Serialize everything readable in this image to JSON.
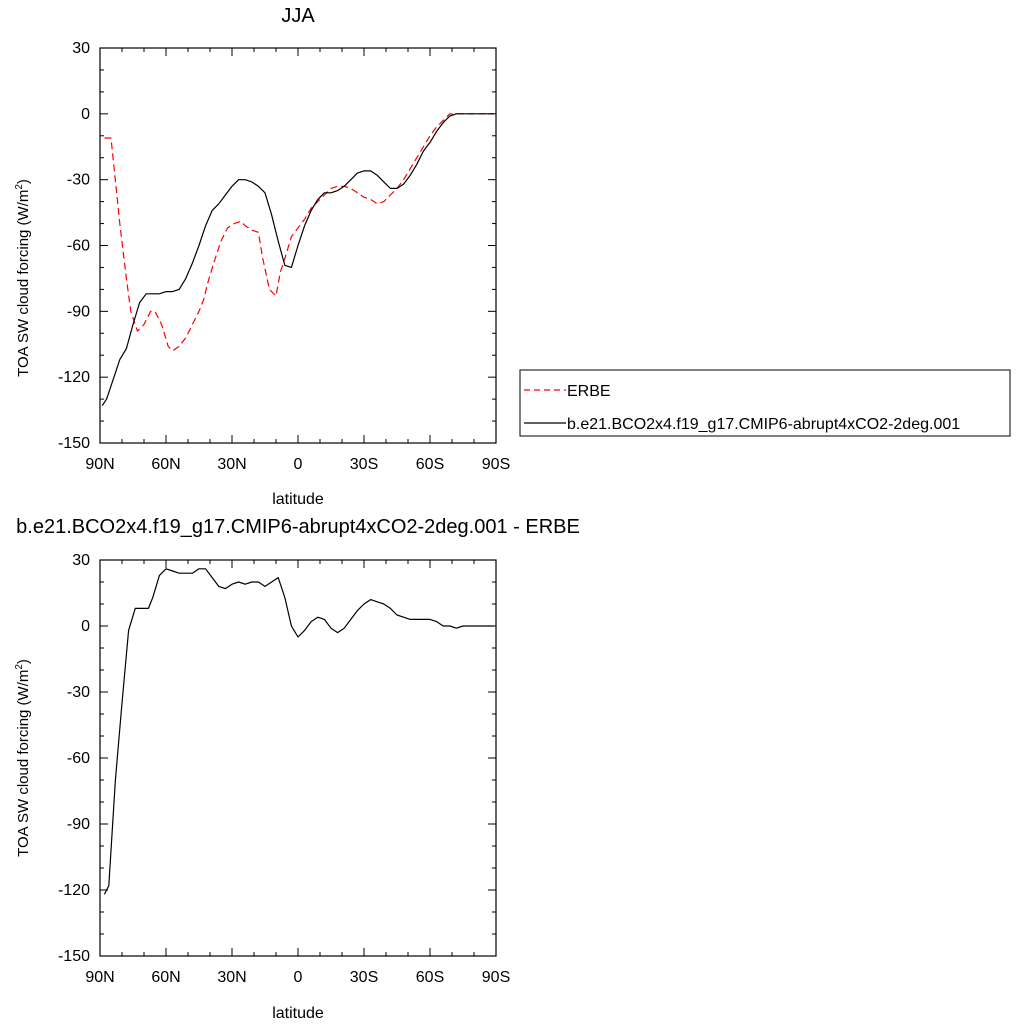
{
  "chart_data": [
    {
      "type": "line",
      "title": "JJA",
      "xlabel": "latitude",
      "ylabel": "TOA SW cloud forcing (W/m",
      "ylabel_sup": "2",
      "ylabel_tail": ")",
      "xlim": [
        90,
        -90
      ],
      "ylim": [
        -150,
        30
      ],
      "xticks": [
        90,
        60,
        30,
        0,
        -30,
        -60,
        -90
      ],
      "xtick_labels": [
        "90N",
        "60N",
        "30N",
        "0",
        "30S",
        "60S",
        "90S"
      ],
      "yticks": [
        30,
        0,
        -30,
        -60,
        -90,
        -120,
        -150
      ],
      "ytick_labels": [
        "30",
        "0",
        "-30",
        "-60",
        "-90",
        "-120",
        "-150"
      ],
      "legend_position": "right",
      "series": [
        {
          "name": "ERBE",
          "color": "#ff0000",
          "dash": true,
          "x": [
            88,
            85,
            81,
            78,
            76,
            73,
            70,
            67,
            65,
            62,
            59,
            57,
            54,
            51,
            48,
            45,
            43,
            41,
            38,
            35,
            32,
            29,
            26,
            24,
            21,
            18,
            16,
            13,
            10,
            8,
            6,
            3,
            0,
            -3,
            -6,
            -9,
            -12,
            -15,
            -18,
            -21,
            -24,
            -27,
            -30,
            -33,
            -36,
            -39,
            -42,
            -45,
            -48,
            -51,
            -54,
            -57,
            -60,
            -63,
            -66,
            -69,
            -72,
            -75,
            -78,
            -81,
            -84,
            -87,
            -89
          ],
          "y": [
            -11,
            -11,
            -50,
            -75,
            -90,
            -99,
            -96,
            -90,
            -90,
            -96,
            -106,
            -108,
            -106,
            -102,
            -96,
            -90,
            -85,
            -77,
            -67,
            -58,
            -52,
            -50,
            -49,
            -51,
            -53,
            -54,
            -66,
            -80,
            -83,
            -72,
            -66,
            -56,
            -52,
            -48,
            -43,
            -40,
            -37,
            -34,
            -33,
            -33,
            -34,
            -36,
            -38,
            -39,
            -41,
            -40,
            -37,
            -34,
            -30,
            -25,
            -20,
            -15,
            -10,
            -6,
            -3,
            0,
            0,
            0,
            0,
            0,
            0,
            0,
            0
          ]
        },
        {
          "name": "b.e21.BCO2x4.f19_g17.CMIP6-abrupt4xCO2-2deg.001",
          "color": "#000000",
          "dash": false,
          "x": [
            89,
            87,
            84,
            81,
            78,
            75,
            72,
            69,
            66,
            63,
            60,
            57,
            54,
            51,
            48,
            45,
            42,
            39,
            36,
            33,
            30,
            27,
            24,
            21,
            18,
            15,
            12,
            9,
            6,
            3,
            0,
            -3,
            -6,
            -9,
            -12,
            -15,
            -18,
            -21,
            -24,
            -27,
            -30,
            -33,
            -36,
            -39,
            -42,
            -45,
            -48,
            -51,
            -54,
            -57,
            -60,
            -63,
            -66,
            -69,
            -72,
            -75,
            -78,
            -81,
            -84,
            -87,
            -89
          ],
          "y": [
            -133,
            -130,
            -121,
            -112,
            -107,
            -96,
            -86,
            -82,
            -82,
            -82,
            -81,
            -81,
            -80,
            -75,
            -68,
            -60,
            -51,
            -44,
            -41,
            -37,
            -33,
            -30,
            -30,
            -31,
            -33,
            -36,
            -46,
            -58,
            -69,
            -70,
            -60,
            -51,
            -44,
            -39,
            -36,
            -36,
            -35,
            -33,
            -30,
            -27,
            -26,
            -26,
            -28,
            -31,
            -34,
            -34,
            -32,
            -28,
            -23,
            -17,
            -13,
            -8,
            -4,
            -1,
            0,
            0,
            0,
            0,
            0,
            0,
            0
          ]
        }
      ]
    },
    {
      "type": "line",
      "title": "b.e21.BCO2x4.f19_g17.CMIP6-abrupt4xCO2-2deg.001 - ERBE",
      "xlabel": "latitude",
      "ylabel": "TOA SW cloud forcing (W/m",
      "ylabel_sup": "2",
      "ylabel_tail": ")",
      "xlim": [
        90,
        -90
      ],
      "ylim": [
        -150,
        30
      ],
      "xticks": [
        90,
        60,
        30,
        0,
        -30,
        -60,
        -90
      ],
      "xtick_labels": [
        "90N",
        "60N",
        "30N",
        "0",
        "30S",
        "60S",
        "90S"
      ],
      "yticks": [
        30,
        0,
        -30,
        -60,
        -90,
        -120,
        -150
      ],
      "ytick_labels": [
        "30",
        "0",
        "-30",
        "-60",
        "-90",
        "-120",
        "-150"
      ],
      "series": [
        {
          "color": "#000000",
          "dash": false,
          "x": [
            88,
            86,
            83,
            80,
            77,
            74,
            71,
            68,
            66,
            63,
            60,
            57,
            54,
            51,
            48,
            45,
            42,
            39,
            36,
            33,
            30,
            27,
            24,
            21,
            18,
            15,
            12,
            9,
            6,
            3,
            0,
            -3,
            -6,
            -9,
            -12,
            -15,
            -18,
            -21,
            -24,
            -27,
            -30,
            -33,
            -36,
            -39,
            -42,
            -45,
            -48,
            -51,
            -54,
            -57,
            -60,
            -63,
            -66,
            -69,
            -72,
            -75,
            -78,
            -81,
            -84,
            -87,
            -89
          ],
          "y": [
            -122,
            -118,
            -70,
            -35,
            -2,
            8,
            8,
            8,
            13,
            23,
            26,
            25,
            24,
            24,
            24,
            26,
            26,
            22,
            18,
            17,
            19,
            20,
            19,
            20,
            20,
            18,
            20,
            22,
            13,
            0,
            -5,
            -2,
            2,
            4,
            3,
            -1,
            -3,
            -1,
            3,
            7,
            10,
            12,
            11,
            10,
            8,
            5,
            4,
            3,
            3,
            3,
            3,
            2,
            0,
            0,
            -1,
            0,
            0,
            0,
            0,
            0,
            0
          ]
        }
      ]
    }
  ]
}
